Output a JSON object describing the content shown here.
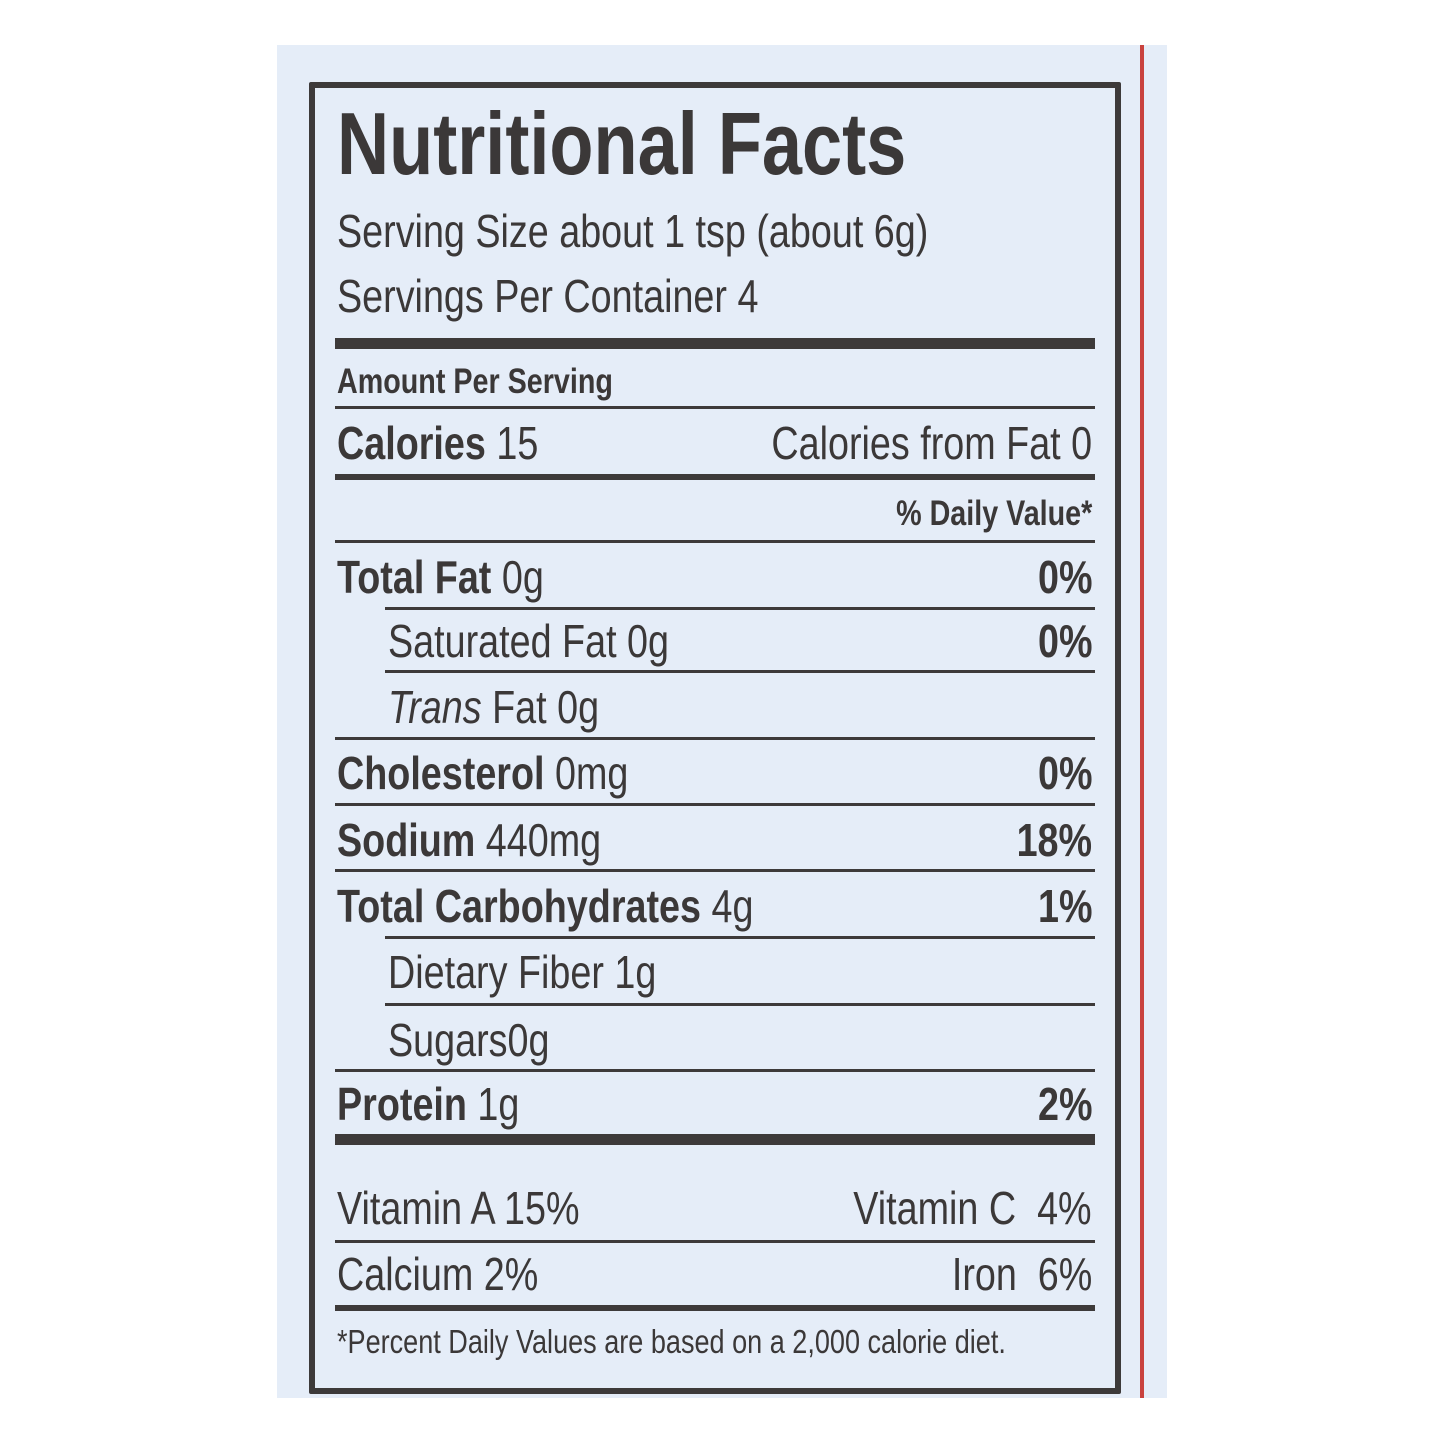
{
  "label": {
    "title": "Nutritional Facts",
    "serving_size": "Serving Size about 1 tsp (about 6g)",
    "servings_per_container": "Servings Per Container 4",
    "amount_per_serving": "Amount Per Serving",
    "calories_label": "Calories",
    "calories_value": "15",
    "calories_from_fat": "Calories from Fat 0",
    "daily_value_header": "% Daily Value*",
    "nutrients": [
      {
        "name": "Total Fat",
        "amount": "0g",
        "dv": "0%"
      },
      {
        "name": "Saturated Fat",
        "amount": "0g",
        "dv": "0%"
      },
      {
        "name": "Trans",
        "name_rest": "Fat",
        "amount": "0g",
        "dv": ""
      },
      {
        "name": "Cholesterol",
        "amount": "0mg",
        "dv": "0%"
      },
      {
        "name": "Sodium",
        "amount": "440mg",
        "dv": "18%"
      },
      {
        "name": "Total Carbohydrates",
        "amount": "4g",
        "dv": "1%"
      },
      {
        "name": "Dietary Fiber",
        "amount": "1g",
        "dv": ""
      },
      {
        "name": "Sugars",
        "amount": "0g",
        "dv": ""
      },
      {
        "name": "Protein",
        "amount": "1g",
        "dv": "2%"
      }
    ],
    "vitamins": {
      "vitamin_a": "Vitamin A 15%",
      "vitamin_c": "Vitamin C  4%",
      "calcium": "Calcium 2%",
      "iron": "Iron  6%"
    },
    "footnote": "*Percent Daily Values are based on a 2,000 calorie diet."
  },
  "colors": {
    "background": "#e5edf8",
    "ink": "#3b3838",
    "accent_line": "#c9423e"
  }
}
